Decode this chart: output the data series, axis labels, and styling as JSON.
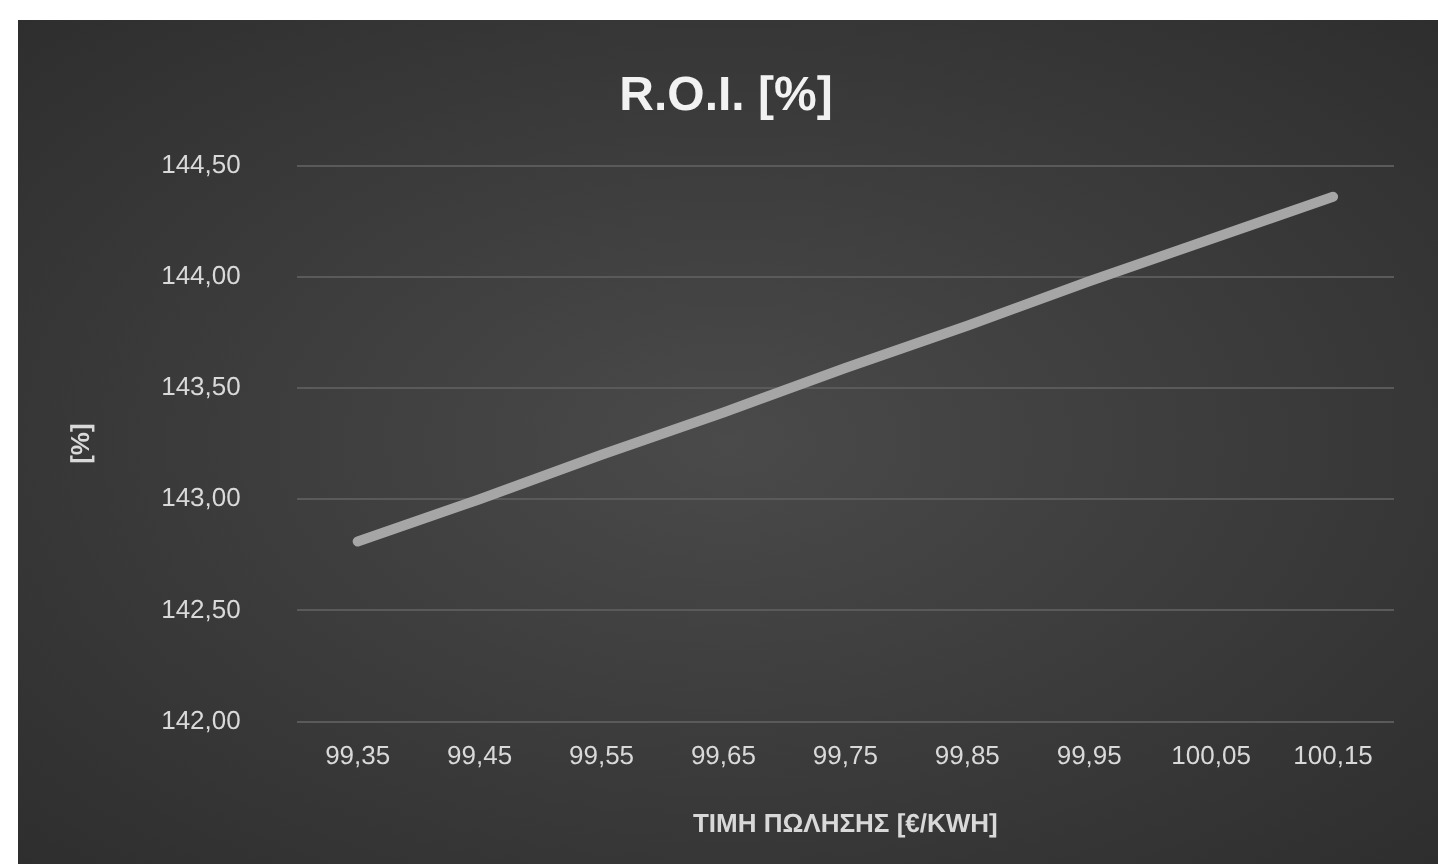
{
  "chart_data": {
    "type": "line",
    "title": "R.O.I. [%]",
    "xlabel": "ΤΙΜΗ ΠΩΛΗΣΗΣ [€/KWH]",
    "ylabel": "[%]",
    "categories": [
      "99,35",
      "99,45",
      "99,55",
      "99,65",
      "99,75",
      "99,85",
      "99,95",
      "100,05",
      "100,15"
    ],
    "series": [
      {
        "color": "#a6a6a6",
        "values": [
          142.81,
          143.0,
          143.2,
          143.39,
          143.59,
          143.78,
          143.98,
          144.17,
          144.36
        ]
      }
    ],
    "ylim": [
      142,
      144.5
    ],
    "yticks": [
      {
        "value": 142,
        "label": "142,00"
      },
      {
        "value": 142.5,
        "label": "142,50"
      },
      {
        "value": 143,
        "label": "143,00"
      },
      {
        "value": 143.5,
        "label": "143,50"
      },
      {
        "value": 144,
        "label": "144,00"
      },
      {
        "value": 144.5,
        "label": "144,50"
      }
    ],
    "grid": "y",
    "legend": false,
    "marker": "none",
    "line_style": "solid"
  }
}
